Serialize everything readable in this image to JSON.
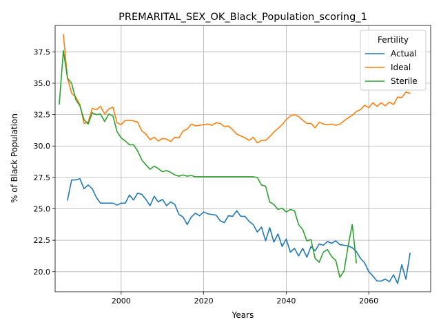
{
  "chart_data": {
    "type": "line",
    "title": "PREMARITAL_SEX_OK_Black_Population_scoring_1",
    "xlabel": "Years",
    "ylabel": "% of Black Population",
    "xlim": [
      1984,
      2075
    ],
    "ylim": [
      18.4,
      39.6
    ],
    "xticks": [
      2000,
      2020,
      2040,
      2060
    ],
    "yticks": [
      20.0,
      22.5,
      25.0,
      27.5,
      30.0,
      32.5,
      35.0,
      37.5
    ],
    "xtick_labels": [
      "2000",
      "2020",
      "2040",
      "2060"
    ],
    "ytick_labels": [
      "20.0",
      "22.5",
      "25.0",
      "27.5",
      "30.0",
      "32.5",
      "35.0",
      "37.5"
    ],
    "grid": true,
    "legend": {
      "title": "Fertility",
      "position": "top-right"
    },
    "series": [
      {
        "name": "Actual",
        "color": "#1f77b4",
        "x": [
          1987,
          1988,
          1989,
          1990,
          1991,
          1992,
          1993,
          1994,
          1995,
          1996,
          1997,
          1998,
          1999,
          2000,
          2001,
          2002,
          2003,
          2004,
          2005,
          2006,
          2007,
          2008,
          2009,
          2010,
          2011,
          2012,
          2013,
          2014,
          2015,
          2016,
          2017,
          2018,
          2019,
          2020,
          2021,
          2022,
          2023,
          2024,
          2025,
          2026,
          2027,
          2028,
          2029,
          2030,
          2031,
          2032,
          2033,
          2034,
          2035,
          2036,
          2037,
          2038,
          2039,
          2040,
          2041,
          2042,
          2043,
          2044,
          2045,
          2046,
          2047,
          2048,
          2049,
          2050,
          2051,
          2052,
          2053,
          2054,
          2055,
          2056,
          2057,
          2058,
          2059,
          2060,
          2061,
          2062,
          2063,
          2064,
          2065,
          2066,
          2067,
          2068,
          2069,
          2070
        ],
        "values": [
          25.7,
          27.3,
          27.3,
          27.4,
          26.6,
          26.9,
          26.6,
          25.9,
          25.45,
          25.45,
          25.45,
          25.45,
          25.3,
          25.45,
          25.45,
          26.1,
          25.7,
          26.25,
          26.15,
          25.75,
          25.25,
          26.0,
          25.55,
          25.75,
          25.25,
          25.55,
          25.35,
          24.55,
          24.35,
          23.75,
          24.35,
          24.65,
          24.45,
          24.75,
          24.6,
          24.55,
          24.5,
          24.05,
          23.9,
          24.45,
          24.4,
          24.85,
          24.4,
          24.4,
          24.0,
          23.75,
          23.15,
          23.55,
          22.45,
          23.5,
          22.35,
          23.0,
          22.0,
          22.6,
          21.55,
          21.85,
          21.25,
          21.85,
          21.15,
          22.0,
          21.65,
          22.2,
          22.1,
          22.4,
          22.25,
          22.45,
          22.15,
          22.1,
          22.05,
          21.9,
          21.6,
          21.05,
          20.7,
          20.0,
          19.65,
          19.25,
          19.25,
          19.4,
          19.2,
          19.75,
          19.05,
          20.55,
          19.4,
          21.45
        ]
      },
      {
        "name": "Ideal",
        "color": "#ff7f0e",
        "x": [
          1986,
          1987,
          1988,
          1989,
          1990,
          1991,
          1992,
          1993,
          1994,
          1995,
          1996,
          1997,
          1998,
          1999,
          2000,
          2001,
          2002,
          2003,
          2004,
          2005,
          2006,
          2007,
          2008,
          2009,
          2010,
          2011,
          2012,
          2013,
          2014,
          2015,
          2016,
          2017,
          2018,
          2019,
          2020,
          2021,
          2022,
          2023,
          2024,
          2025,
          2026,
          2027,
          2028,
          2029,
          2030,
          2031,
          2032,
          2033,
          2034,
          2035,
          2036,
          2037,
          2038,
          2039,
          2040,
          2041,
          2042,
          2043,
          2044,
          2045,
          2046,
          2047,
          2048,
          2049,
          2050,
          2051,
          2052,
          2053,
          2054,
          2055,
          2056,
          2057,
          2058,
          2059,
          2060,
          2061,
          2062,
          2063,
          2064,
          2065,
          2066,
          2067,
          2068,
          2069,
          2070
        ],
        "values": [
          38.85,
          35.4,
          34.2,
          33.9,
          33.3,
          31.8,
          31.9,
          33.0,
          32.9,
          33.15,
          32.55,
          32.95,
          33.1,
          31.85,
          31.7,
          32.05,
          32.05,
          32.0,
          31.9,
          31.2,
          30.95,
          30.5,
          30.7,
          30.4,
          30.6,
          30.55,
          30.35,
          30.7,
          30.65,
          31.2,
          31.35,
          31.75,
          31.6,
          31.65,
          31.7,
          31.75,
          31.65,
          31.85,
          31.8,
          31.55,
          31.6,
          31.3,
          30.95,
          30.8,
          30.65,
          30.45,
          30.7,
          30.25,
          30.45,
          30.45,
          30.75,
          31.1,
          31.4,
          31.7,
          32.1,
          32.4,
          32.5,
          32.35,
          32.05,
          31.8,
          31.8,
          31.45,
          31.9,
          31.75,
          31.7,
          31.75,
          31.65,
          31.75,
          32.0,
          32.25,
          32.45,
          32.75,
          32.9,
          33.25,
          33.05,
          33.45,
          33.15,
          33.45,
          33.2,
          33.5,
          33.3,
          33.9,
          33.85,
          34.3,
          34.2
        ]
      },
      {
        "name": "Sterile",
        "color": "#2ca02c",
        "x": [
          1985,
          1986,
          1987,
          1988,
          1989,
          1990,
          1991,
          1992,
          1993,
          1994,
          1995,
          1996,
          1997,
          1998,
          1999,
          2000,
          2001,
          2002,
          2003,
          2004,
          2005,
          2006,
          2007,
          2008,
          2009,
          2010,
          2011,
          2012,
          2013,
          2014,
          2015,
          2016,
          2017,
          2018,
          2019,
          2020,
          2021,
          2022,
          2023,
          2024,
          2025,
          2026,
          2027,
          2028,
          2029,
          2030,
          2031,
          2032,
          2033,
          2034,
          2035,
          2036,
          2037,
          2038,
          2039,
          2040,
          2041,
          2042,
          2043,
          2044,
          2045,
          2046,
          2047,
          2048,
          2049,
          2050,
          2051,
          2052,
          2053,
          2054,
          2055,
          2056,
          2057
        ],
        "values": [
          33.35,
          37.6,
          35.4,
          35.0,
          33.7,
          33.2,
          32.1,
          31.75,
          32.65,
          32.5,
          32.55,
          31.95,
          32.55,
          32.4,
          31.15,
          30.65,
          30.4,
          30.1,
          30.1,
          29.6,
          28.9,
          28.5,
          28.15,
          28.4,
          28.2,
          27.95,
          28.05,
          27.9,
          27.7,
          27.6,
          27.7,
          27.6,
          27.65,
          27.55,
          27.55,
          27.55,
          27.55,
          27.55,
          27.55,
          27.55,
          27.55,
          27.55,
          27.55,
          27.55,
          27.55,
          27.55,
          27.55,
          27.55,
          27.5,
          26.9,
          26.8,
          25.55,
          25.35,
          24.95,
          25.05,
          24.75,
          24.95,
          24.85,
          23.75,
          23.35,
          22.45,
          22.55,
          21.05,
          20.75,
          21.55,
          21.75,
          21.2,
          20.9,
          19.55,
          20.05,
          22.05,
          23.75,
          20.7
        ]
      }
    ]
  }
}
